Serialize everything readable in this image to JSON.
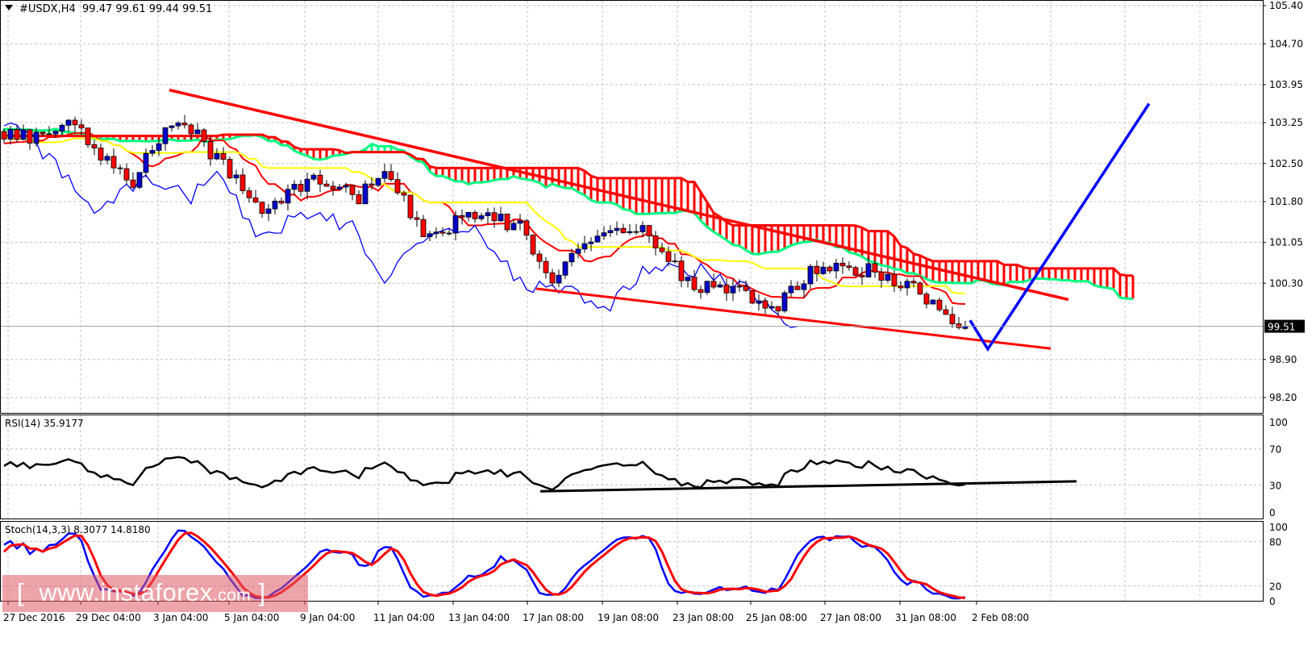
{
  "header": {
    "symbol": "#USDX,H4",
    "ohlc": "99.47 99.61 99.44 99.51"
  },
  "rsi_label": {
    "name": "RSI(14)",
    "value": "35.9177"
  },
  "stoch_label": {
    "name": "Stoch(14,3,3)",
    "values": "8.3077 14.8180"
  },
  "watermark": {
    "main": "[  www.instaforex",
    "tld": ".com",
    "close": " ]"
  },
  "current_price_label": "99.51",
  "colors": {
    "bull": "#0000c8",
    "bear": "#ff0000",
    "tenkan": "#ff0000",
    "kijun": "#ffff00",
    "chikou": "#0000ff",
    "span_a": "#00ff80",
    "span_b": "#ff0000",
    "trendline": "#ff0000",
    "projection": "#0000ff",
    "rsi": "#000000",
    "stoch_main": "#0000ff",
    "stoch_signal": "#ff0000",
    "grid": "#c0c0c0"
  },
  "chart_data": [
    {
      "type": "candlestick",
      "title": "#USDX,H4",
      "indicators": [
        "Ichimoku"
      ],
      "last_bar": {
        "open": 99.47,
        "high": 99.61,
        "low": 99.44,
        "close": 99.51
      },
      "ylim": [
        98.2,
        105.4
      ],
      "y_ticks": [
        "105.40",
        "104.70",
        "103.95",
        "103.25",
        "102.50",
        "101.80",
        "101.05",
        "100.30",
        "98.90",
        "98.20"
      ],
      "x_ticks": [
        "27 Dec 2016",
        "29 Dec 04:00",
        "3 Jan 04:00",
        "5 Jan 04:00",
        "9 Jan 04:00",
        "11 Jan 04:00",
        "13 Jan 04:00",
        "17 Jan 08:00",
        "19 Jan 08:00",
        "23 Jan 08:00",
        "25 Jan 08:00",
        "27 Jan 08:00",
        "31 Jan 08:00",
        "2 Feb 08:00"
      ],
      "closes_sampled": [
        103.0,
        103.0,
        103.4,
        102.6,
        102.2,
        103.2,
        103.0,
        102.3,
        101.6,
        102.1,
        102.2,
        101.9,
        102.3,
        101.2,
        101.4,
        101.6,
        101.3,
        100.4,
        101.0,
        101.3,
        101.2,
        100.4,
        100.2,
        100.1,
        99.9,
        100.5,
        100.6,
        100.5,
        100.3,
        99.8,
        99.51
      ],
      "grid": true,
      "trendlines": [
        {
          "name": "upper-resistance",
          "from_price": 103.85,
          "to_price": 100.0
        },
        {
          "name": "lower-support",
          "from_price": 100.2,
          "to_price": 99.1
        }
      ],
      "projection": [
        99.62,
        99.09,
        103.6
      ]
    },
    {
      "type": "line",
      "title": "RSI(14) 35.9177",
      "ylim": [
        0,
        100
      ],
      "y_ticks": [
        "100",
        "70",
        "30",
        "0"
      ],
      "trendline": {
        "from": 23,
        "to": 34
      }
    },
    {
      "type": "line",
      "title": "Stoch(14,3,3) 8.3077 14.8180",
      "ylim": [
        0,
        100
      ],
      "y_ticks": [
        "100",
        "80",
        "20",
        "0"
      ]
    }
  ]
}
